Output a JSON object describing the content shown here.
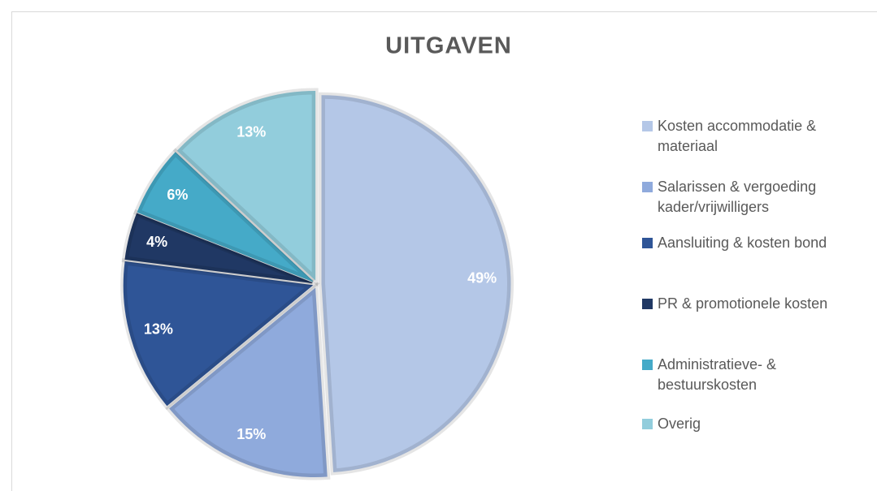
{
  "chart_data": {
    "type": "pie",
    "title": "UITGAVEN",
    "categories": [
      "Kosten accommodatie & materiaal",
      "Salarissen & vergoeding kader/vrijwilligers",
      "Aansluiting & kosten bond",
      "PR & promotionele kosten",
      "Administratieve- & bestuurskosten",
      "Overig"
    ],
    "values": [
      49,
      15,
      13,
      4,
      6,
      13
    ],
    "value_labels": [
      "49%",
      "15%",
      "13%",
      "4%",
      "6%",
      "13%"
    ],
    "colors": [
      "#b4c7e7",
      "#8faadc",
      "#2f5597",
      "#203864",
      "#45aac8",
      "#92cddc"
    ],
    "legend": "right"
  }
}
